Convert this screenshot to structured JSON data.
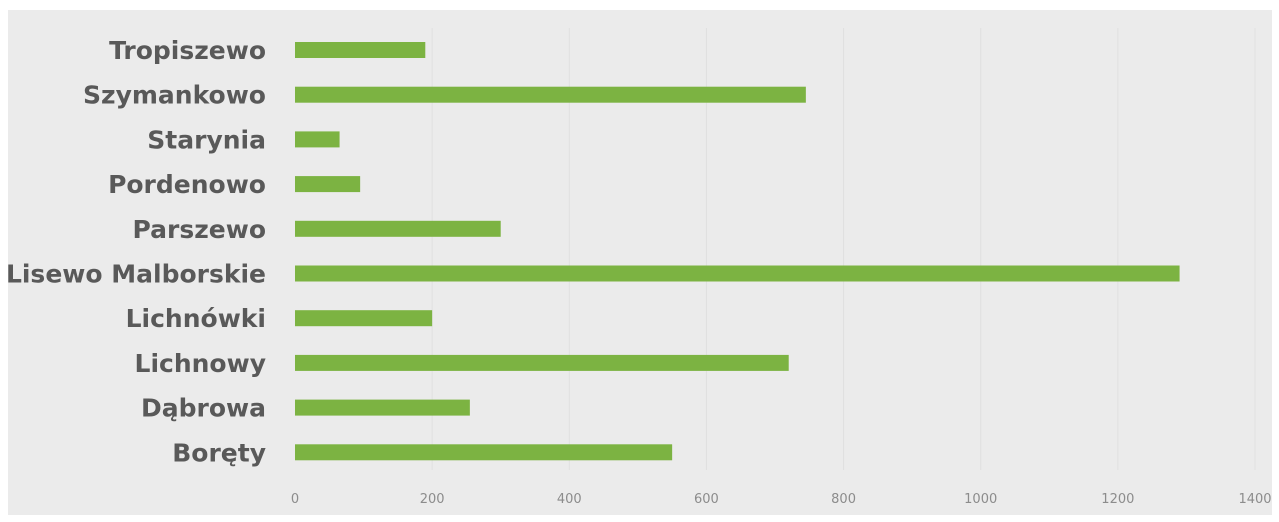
{
  "chart_data": {
    "type": "bar",
    "orientation": "horizontal",
    "categories": [
      "Tropiszewo",
      "Szymankowo",
      "Starynia",
      "Pordenowo",
      "Parszewo",
      "Lisewo Malborskie",
      "Lichnówki",
      "Lichnowy",
      "Dąbrowa",
      "Boręty"
    ],
    "values": [
      190,
      745,
      65,
      95,
      300,
      1290,
      200,
      720,
      255,
      550
    ],
    "title": "",
    "xlabel": "",
    "ylabel": "",
    "xlim": [
      0,
      1400
    ],
    "xticks": [
      "0",
      "200",
      "400",
      "600",
      "800",
      "1000",
      "1200",
      "1400"
    ],
    "grid": true,
    "legend": "none"
  },
  "colors": {
    "bar": "#7cb342",
    "plot_background": "#ebebeb",
    "gridline": "#e0e0e0",
    "category_text": "#595959",
    "tick_text": "#8c8c8c"
  }
}
